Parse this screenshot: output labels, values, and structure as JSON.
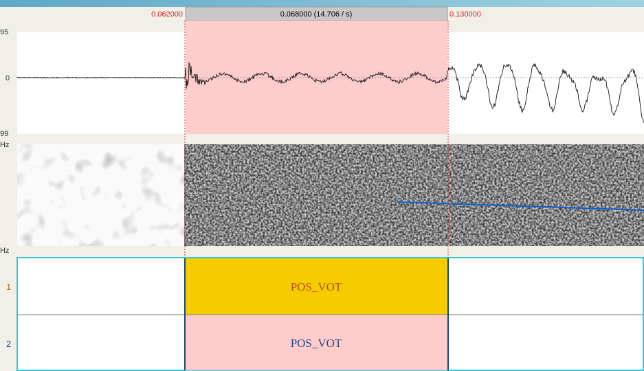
{
  "time_bar": {
    "left": "0.062000",
    "selection": "0.068000 (14.706 / s)",
    "right": "0.130000"
  },
  "waveform": {
    "top_label": "95",
    "zero_label": "0",
    "bottom_label": "99"
  },
  "spectrogram": {
    "top_label": "Hz",
    "bottom_label": "Hz"
  },
  "tiers": [
    {
      "number": "1",
      "interval_label": "POS_VOT"
    },
    {
      "number": "2",
      "interval_label": "POS_VOT"
    }
  ]
}
